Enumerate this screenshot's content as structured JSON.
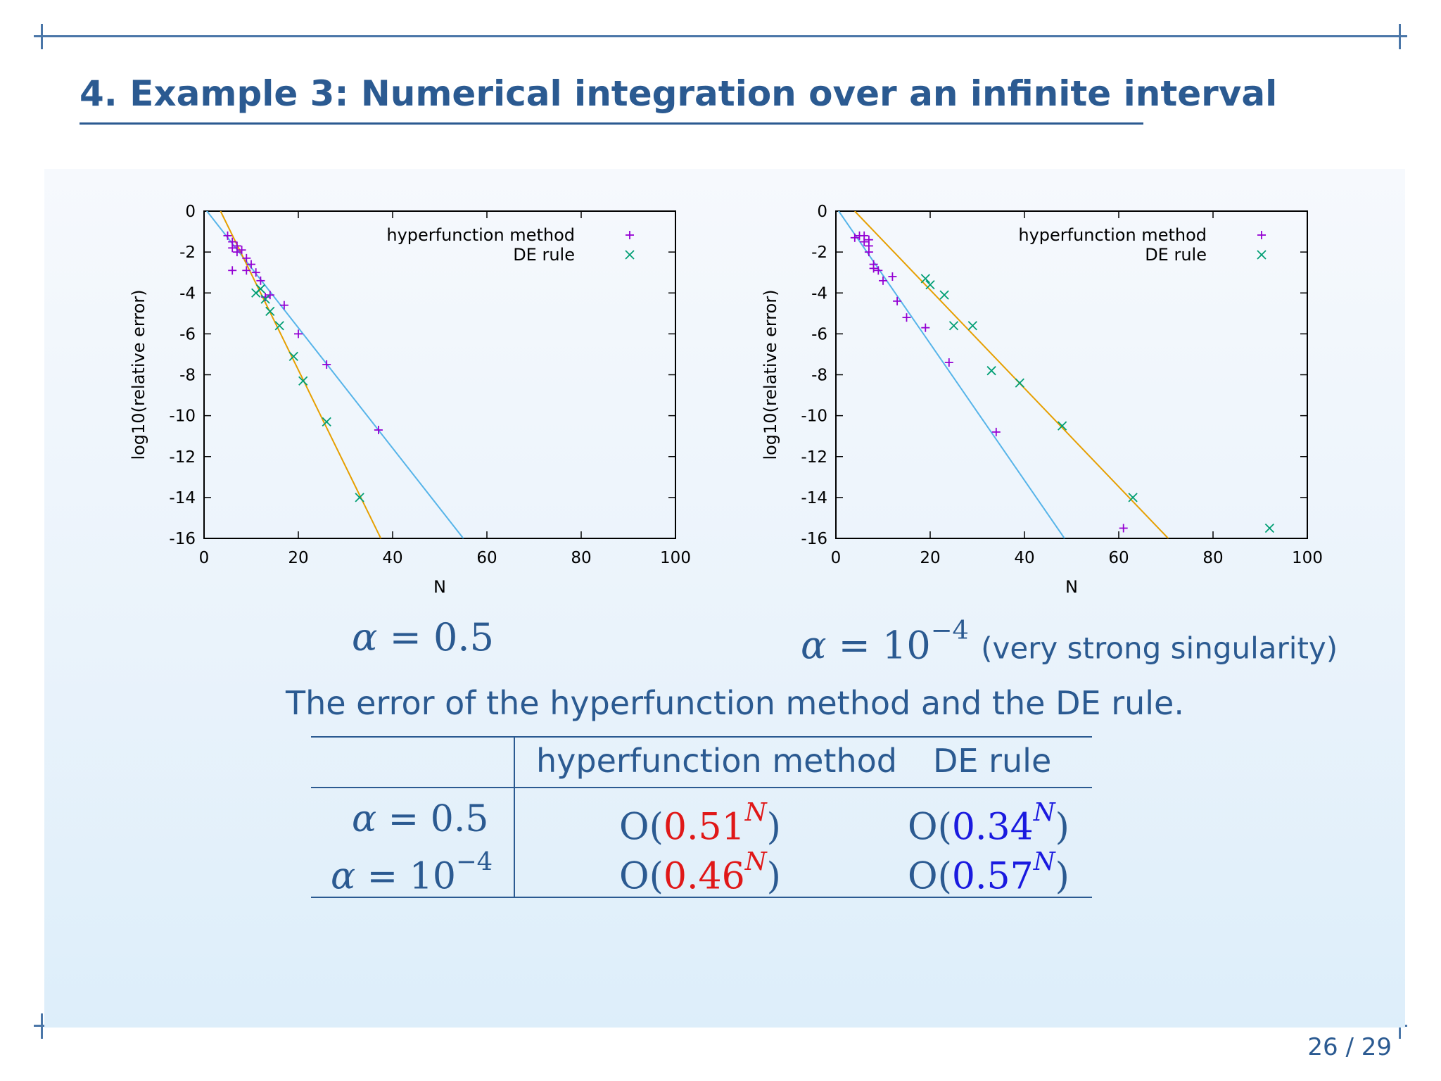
{
  "title": "4. Example 3: Numerical integration over an infinite interval",
  "page": "26 / 29",
  "legend": {
    "series1": "hyperfunction method",
    "series2": "DE rule"
  },
  "colors": {
    "hyper": "#9400d3",
    "de": "#009e73",
    "hyper_line": "#56b4e9",
    "de_line": "#e69f00",
    "accent_red": "#e01818",
    "accent_blue": "#1a1adf",
    "title": "#2b5a91"
  },
  "chart_data": [
    {
      "type": "scatter",
      "xlabel": "N",
      "ylabel": "log10(relative error)",
      "xlim": [
        0,
        100
      ],
      "ylim": [
        -16,
        0
      ],
      "xticks": [
        0,
        20,
        40,
        60,
        80,
        100
      ],
      "yticks": [
        0,
        -2,
        -4,
        -6,
        -8,
        -10,
        -12,
        -14,
        -16
      ],
      "legend_position": "top-right",
      "series": [
        {
          "name": "hyperfunction method",
          "marker": "plus",
          "points": [
            [
              5,
              -1.2
            ],
            [
              6,
              -1.5
            ],
            [
              6,
              -1.8
            ],
            [
              7,
              -1.7
            ],
            [
              7,
              -2.0
            ],
            [
              6,
              -2.9
            ],
            [
              8,
              -1.9
            ],
            [
              9,
              -2.3
            ],
            [
              9,
              -2.9
            ],
            [
              10,
              -2.6
            ],
            [
              11,
              -3.0
            ],
            [
              12,
              -3.4
            ],
            [
              13,
              -4.2
            ],
            [
              14,
              -4.1
            ],
            [
              17,
              -4.6
            ],
            [
              20,
              -6.0
            ],
            [
              26,
              -7.5
            ],
            [
              37,
              -10.7
            ]
          ],
          "fit": [
            [
              0,
              0.18
            ],
            [
              55,
              -16
            ]
          ]
        },
        {
          "name": "DE rule",
          "marker": "x",
          "points": [
            [
              11,
              -4.0
            ],
            [
              12,
              -3.8
            ],
            [
              13,
              -4.3
            ],
            [
              14,
              -4.9
            ],
            [
              16,
              -5.6
            ],
            [
              19,
              -7.1
            ],
            [
              21,
              -8.3
            ],
            [
              26,
              -10.3
            ],
            [
              33,
              -14.0
            ]
          ],
          "fit": [
            [
              3.5,
              0
            ],
            [
              37.5,
              -16
            ]
          ]
        }
      ]
    },
    {
      "type": "scatter",
      "xlabel": "N",
      "ylabel": "log10(relative error)",
      "xlim": [
        0,
        100
      ],
      "ylim": [
        -16,
        0
      ],
      "xticks": [
        0,
        20,
        40,
        60,
        80,
        100
      ],
      "yticks": [
        0,
        -2,
        -4,
        -6,
        -8,
        -10,
        -12,
        -14,
        -16
      ],
      "legend_position": "top-right",
      "series": [
        {
          "name": "hyperfunction method",
          "marker": "plus",
          "points": [
            [
              4,
              -1.3
            ],
            [
              5,
              -1.2
            ],
            [
              6,
              -1.2
            ],
            [
              6,
              -1.5
            ],
            [
              7,
              -1.4
            ],
            [
              7,
              -1.7
            ],
            [
              7,
              -2.0
            ],
            [
              8,
              -2.6
            ],
            [
              8,
              -2.8
            ],
            [
              9,
              -2.9
            ],
            [
              10,
              -3.4
            ],
            [
              12,
              -3.2
            ],
            [
              13,
              -4.4
            ],
            [
              15,
              -5.2
            ],
            [
              19,
              -5.7
            ],
            [
              24,
              -7.4
            ],
            [
              34,
              -10.8
            ],
            [
              61,
              -15.5
            ]
          ],
          "fit": [
            [
              0,
              0.2
            ],
            [
              48.5,
              -16
            ]
          ]
        },
        {
          "name": "DE rule",
          "marker": "x",
          "points": [
            [
              19,
              -3.3
            ],
            [
              20,
              -3.6
            ],
            [
              23,
              -4.1
            ],
            [
              25,
              -5.6
            ],
            [
              29,
              -5.6
            ],
            [
              33,
              -7.8
            ],
            [
              39,
              -8.4
            ],
            [
              48,
              -10.5
            ],
            [
              63,
              -14.0
            ],
            [
              92,
              -15.5
            ]
          ],
          "fit": [
            [
              4,
              0
            ],
            [
              70.5,
              -16
            ]
          ]
        }
      ]
    }
  ],
  "labels": {
    "alpha_half": "0.5",
    "alpha_small_base": "10",
    "alpha_small_exp": "−4",
    "very_strong": "(very strong singularity)"
  },
  "caption": "The error of the hyperfunction method and the DE rule.",
  "table": {
    "header": [
      "",
      "hyperfunction method",
      "DE rule"
    ],
    "rows": [
      {
        "alpha_base": "0.5",
        "alpha_exp": "",
        "hyper": "0.51",
        "de": "0.34"
      },
      {
        "alpha_base": "10",
        "alpha_exp": "−4",
        "hyper": "0.46",
        "de": "0.57"
      }
    ]
  }
}
